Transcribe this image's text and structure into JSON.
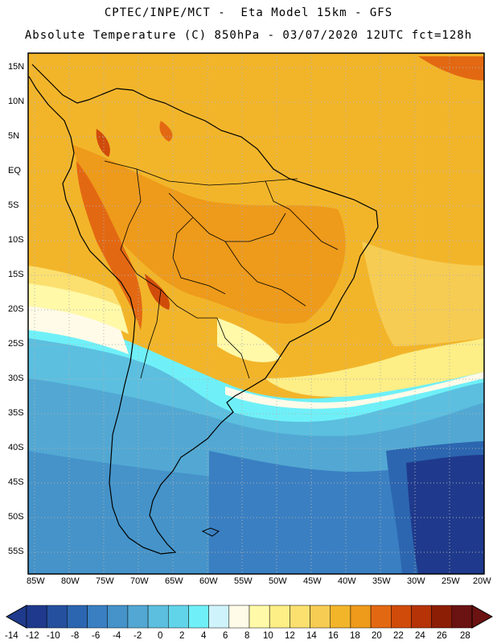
{
  "title_line1": "CPTEC/INPE/MCT -  Eta Model 15km - GFS",
  "title_line2": "Absolute Temperature (C) 850hPa - 03/07/2020 12UTC fct=128h",
  "lat_labels": [
    "15N",
    "10N",
    "5N",
    "EQ",
    "5S",
    "10S",
    "15S",
    "20S",
    "25S",
    "30S",
    "35S",
    "40S",
    "45S",
    "50S",
    "55S"
  ],
  "lon_labels": [
    "85W",
    "80W",
    "75W",
    "70W",
    "65W",
    "60W",
    "55W",
    "50W",
    "45W",
    "40W",
    "35W",
    "30W",
    "25W",
    "20W"
  ],
  "colorbar": {
    "labels": [
      "-14",
      "-12",
      "-10",
      "-8",
      "-6",
      "-4",
      "-2",
      "0",
      "2",
      "4",
      "6",
      "8",
      "10",
      "12",
      "14",
      "16",
      "18",
      "20",
      "22",
      "24",
      "26",
      "28"
    ],
    "colors": [
      "#1f3a8c",
      "#25509e",
      "#2c66b0",
      "#3a7fc2",
      "#4593c9",
      "#52a8d3",
      "#5cbfdf",
      "#62d4ea",
      "#6ff0f8",
      "#cff3fb",
      "#fffbe8",
      "#fff9a8",
      "#fdee86",
      "#fbe070",
      "#f7cc52",
      "#f2b52a",
      "#ee9a1a",
      "#e36812",
      "#d04b0a",
      "#b53306",
      "#8c1e06",
      "#6b1212"
    ]
  }
}
